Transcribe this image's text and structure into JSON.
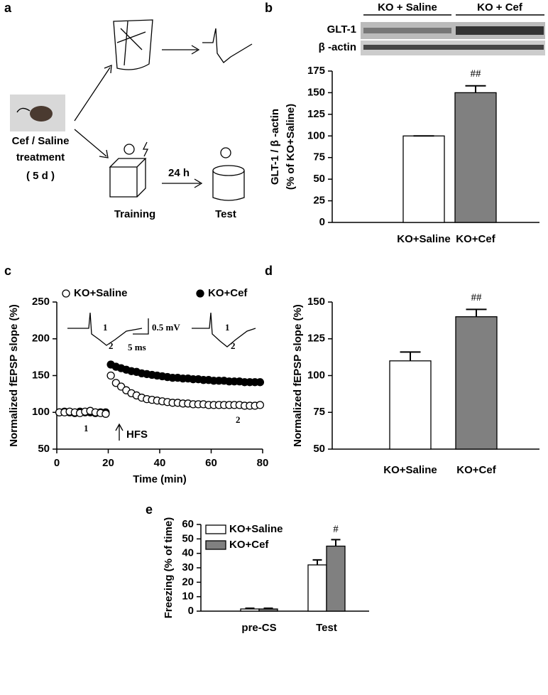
{
  "panel_labels": [
    "a",
    "b",
    "c",
    "d",
    "e"
  ],
  "panel_a": {
    "treatment": [
      "Cef / Saline",
      "treatment",
      "( 5 d )"
    ],
    "interval": "24 h",
    "training": "Training",
    "test": "Test"
  },
  "blot": {
    "groups": [
      "KO + Saline",
      "KO + Cef"
    ],
    "rows": [
      "GLT-1",
      "β -actin"
    ]
  },
  "chart_data": [
    {
      "type": "bar",
      "ylabel": [
        "GLT-1 / β -actin",
        "(% of KO+Saline)"
      ],
      "categories": [
        "KO+Saline",
        "KO+Cef"
      ],
      "values": [
        100,
        150
      ],
      "errors": [
        0,
        8
      ],
      "colors": [
        "#ffffff",
        "#808080"
      ],
      "ylim": [
        0,
        175
      ],
      "yticks": [
        0,
        25,
        50,
        75,
        100,
        125,
        150,
        175
      ],
      "annotation": "##"
    },
    {
      "type": "scatter",
      "xlabel": "Time (min)",
      "ylabel": [
        "Normalized fEPSP slope (%)"
      ],
      "x": [
        1,
        3,
        5,
        7,
        9,
        11,
        13,
        15,
        17,
        19,
        21,
        23,
        25,
        27,
        29,
        31,
        33,
        35,
        37,
        39,
        41,
        43,
        45,
        47,
        49,
        51,
        53,
        55,
        57,
        59,
        61,
        63,
        65,
        67,
        69,
        71,
        73,
        75,
        77,
        79
      ],
      "series": [
        {
          "name": "KO+Cef",
          "color": "#000000",
          "values": [
            100,
            101,
            100,
            99,
            101,
            100,
            100,
            99,
            100,
            100,
            165,
            162,
            160,
            158,
            156,
            155,
            153,
            152,
            151,
            150,
            149,
            148,
            147,
            147,
            146,
            146,
            145,
            145,
            144,
            144,
            143,
            143,
            143,
            142,
            142,
            142,
            141,
            141,
            141,
            141
          ]
        },
        {
          "name": "KO+Saline",
          "color": "#ffffff",
          "values": [
            100,
            100,
            101,
            100,
            99,
            101,
            102,
            100,
            99,
            98,
            150,
            140,
            135,
            130,
            126,
            123,
            120,
            118,
            117,
            116,
            115,
            114,
            113,
            113,
            112,
            112,
            111,
            111,
            111,
            110,
            110,
            110,
            110,
            110,
            110,
            110,
            109,
            109,
            109,
            110
          ]
        }
      ],
      "xlim": [
        0,
        80
      ],
      "xticks": [
        0,
        20,
        40,
        60,
        80
      ],
      "ylim": [
        50,
        250
      ],
      "yticks": [
        50,
        100,
        150,
        200,
        250
      ],
      "annotations": [
        "1",
        "2",
        "1",
        "2",
        "HFS",
        "1",
        "2",
        "0.5 mV",
        "5 ms"
      ]
    },
    {
      "type": "bar",
      "ylabel": [
        "Normalized fEPSP slope (%)"
      ],
      "categories": [
        "KO+Saline",
        "KO+Cef"
      ],
      "values": [
        110,
        140
      ],
      "errors": [
        6,
        5
      ],
      "colors": [
        "#ffffff",
        "#808080"
      ],
      "ylim": [
        50,
        150
      ],
      "yticks": [
        50,
        75,
        100,
        125,
        150
      ],
      "annotation": "##"
    },
    {
      "type": "groupedbar",
      "ylabel": [
        "Freezing (% of time)"
      ],
      "categories": [
        "pre-CS",
        "Test"
      ],
      "series": [
        {
          "name": "KO+Saline",
          "color": "#ffffff",
          "values": [
            1.5,
            32
          ],
          "errors": [
            0.5,
            3.5
          ]
        },
        {
          "name": "KO+Cef",
          "color": "#808080",
          "values": [
            1.5,
            45
          ],
          "errors": [
            0.5,
            4.5
          ]
        }
      ],
      "ylim": [
        0,
        60
      ],
      "yticks": [
        0,
        10,
        20,
        30,
        40,
        50,
        60
      ],
      "annotation": "#"
    }
  ]
}
